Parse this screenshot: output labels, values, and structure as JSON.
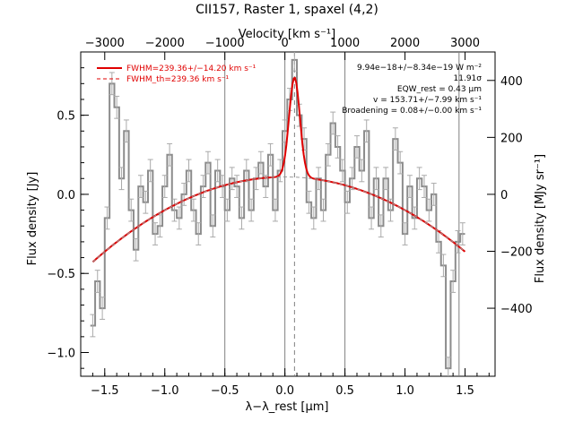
{
  "chart_data": {
    "type": "line",
    "title": "CII157, Raster 1, spaxel (4,2)",
    "xlabel": "λ−λ_rest [μm]",
    "ylabel": "Flux density [Jy]",
    "x2label": "Velocity [km s⁻¹]",
    "y2label": "Flux density [MJy sr⁻¹]",
    "xlim": [
      -1.7,
      1.75
    ],
    "ylim": [
      -1.15,
      0.9
    ],
    "x_ticks": [
      -1.5,
      -1.0,
      -0.5,
      0.0,
      0.5,
      1.0,
      1.5
    ],
    "x_tick_labels": [
      "−1.5",
      "−1.0",
      "−0.5",
      "0.0",
      "0.5",
      "1.0",
      "1.5"
    ],
    "y_ticks": [
      -1.0,
      -0.5,
      0.0,
      0.5
    ],
    "y_tick_labels": [
      "−1.0",
      "−0.5",
      "0.0",
      "0.5"
    ],
    "x2_ticks": [
      -3000,
      -2000,
      -1000,
      0,
      1000,
      2000,
      3000
    ],
    "x2_tick_labels": [
      "−3000",
      "−2000",
      "−1000",
      "0",
      "1000",
      "2000",
      "3000"
    ],
    "y2_ticks": [
      -400,
      -200,
      0,
      200,
      400
    ],
    "y2_tick_labels": [
      "−400",
      "−200",
      "0",
      "200",
      "400"
    ],
    "vertical_lines": [
      -0.5,
      0.0,
      0.5,
      1.45
    ],
    "line_center": 0.08,
    "legend": [
      {
        "label": "FWHM=239.36+/−14.20 km s⁻¹",
        "style": "solid",
        "color": "#e00000"
      },
      {
        "label": "FWHM_th=239.36 km s⁻¹",
        "style": "dashed",
        "color": "#e00000"
      }
    ],
    "annotations": [
      "9.94e−18+/−8.34e−19 W m⁻²",
      "11.91σ",
      "EQW_rest = 0.43 μm",
      "v = 153.71+/−7.99 km s⁻¹",
      "Broadening = 0.08+/−0.00 km s⁻¹"
    ],
    "series": [
      {
        "style": "steps-with-errorbars",
        "color": "#8c8c8c",
        "x": [
          -1.6,
          -1.56,
          -1.52,
          -1.48,
          -1.44,
          -1.4,
          -1.36,
          -1.32,
          -1.28,
          -1.24,
          -1.2,
          -1.16,
          -1.12,
          -1.08,
          -1.04,
          -1.0,
          -0.96,
          -0.92,
          -0.88,
          -0.84,
          -0.8,
          -0.76,
          -0.72,
          -0.68,
          -0.64,
          -0.6,
          -0.56,
          -0.52,
          -0.48,
          -0.44,
          -0.4,
          -0.36,
          -0.32,
          -0.28,
          -0.24,
          -0.2,
          -0.16,
          -0.12,
          -0.08,
          -0.04,
          0.0,
          0.04,
          0.08,
          0.12,
          0.16,
          0.2,
          0.24,
          0.28,
          0.32,
          0.36,
          0.4,
          0.44,
          0.48,
          0.52,
          0.56,
          0.6,
          0.64,
          0.68,
          0.72,
          0.76,
          0.8,
          0.84,
          0.88,
          0.92,
          0.96,
          1.0,
          1.04,
          1.08,
          1.12,
          1.16,
          1.2,
          1.24,
          1.28,
          1.32,
          1.36,
          1.4,
          1.44,
          1.48
        ],
        "y": [
          -0.83,
          -0.55,
          -0.72,
          -0.15,
          0.7,
          0.55,
          0.1,
          0.4,
          -0.1,
          -0.35,
          0.05,
          -0.05,
          0.15,
          -0.25,
          -0.2,
          0.05,
          0.25,
          -0.1,
          -0.15,
          0.0,
          0.15,
          -0.1,
          -0.25,
          0.05,
          0.2,
          -0.2,
          0.15,
          0.05,
          -0.1,
          0.1,
          0.05,
          -0.15,
          0.15,
          -0.1,
          0.1,
          0.2,
          0.05,
          0.25,
          -0.1,
          0.15,
          0.4,
          0.6,
          0.85,
          0.5,
          0.35,
          -0.05,
          -0.15,
          0.1,
          -0.1,
          0.25,
          0.45,
          0.3,
          0.15,
          -0.05,
          0.1,
          0.3,
          0.15,
          0.4,
          -0.15,
          0.1,
          -0.2,
          0.1,
          -0.1,
          0.35,
          0.2,
          -0.25,
          0.05,
          -0.15,
          0.1,
          0.05,
          -0.1,
          0.0,
          -0.3,
          -0.45,
          -1.1,
          -0.55,
          -0.3,
          -0.25
        ],
        "yerr": 0.07
      },
      {
        "style": "fit",
        "color": "#e00000",
        "baseline_poly": {
          "x0": 0.0,
          "a0": 0.11,
          "a2": -0.21
        },
        "gaussian": {
          "amp": 0.63,
          "center": 0.08,
          "sigma": 0.045
        },
        "x_range": [
          -1.6,
          1.5
        ]
      }
    ]
  }
}
